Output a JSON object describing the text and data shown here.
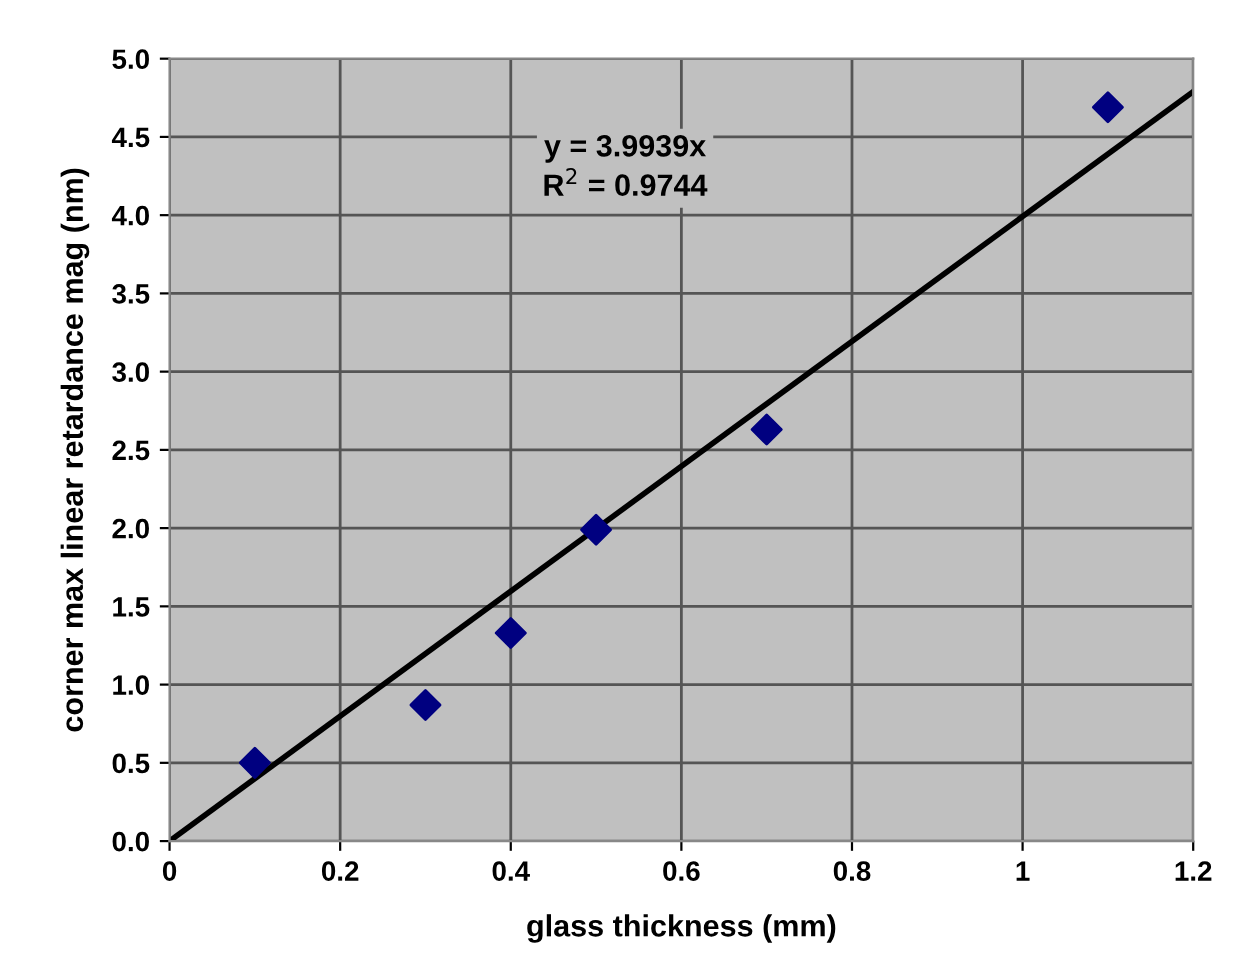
{
  "chart_data": {
    "type": "scatter",
    "xlabel": "glass thickness (mm)",
    "ylabel": "corner max linear retardance mag (nm)",
    "x": [
      0.1,
      0.3,
      0.4,
      0.5,
      0.7,
      1.1
    ],
    "series": [
      {
        "color": "#000080",
        "marker": "diamond",
        "values": [
          0.5,
          0.87,
          1.33,
          1.99,
          2.63,
          4.69
        ]
      },
      {
        "type": "line",
        "color": "#000000",
        "x": [
          0,
          1.2
        ],
        "values": [
          0,
          4.79
        ]
      }
    ],
    "annotations": [
      "y = 3.9939x\nR$^{2}$ = 0.9744"
    ],
    "xlim": [
      0,
      1.2
    ],
    "xticks": [
      0,
      0.2,
      0.4,
      0.6,
      0.8,
      1,
      1.2
    ],
    "ylim": [
      0,
      5
    ],
    "yticks": [
      {
        "value": 0,
        "label": "0.0"
      },
      {
        "value": 0.5,
        "label": "0.5"
      },
      {
        "value": 1,
        "label": "1.0"
      },
      {
        "value": 1.5,
        "label": "1.5"
      },
      {
        "value": 2,
        "label": "2.0"
      },
      {
        "value": 2.5,
        "label": "2.5"
      },
      {
        "value": 3,
        "label": "3.0"
      },
      {
        "value": 3.5,
        "label": "3.5"
      },
      {
        "value": 4,
        "label": "4.0"
      },
      {
        "value": 4.5,
        "label": "4.5"
      },
      {
        "value": 5,
        "label": "5.0"
      }
    ],
    "grid": true
  }
}
